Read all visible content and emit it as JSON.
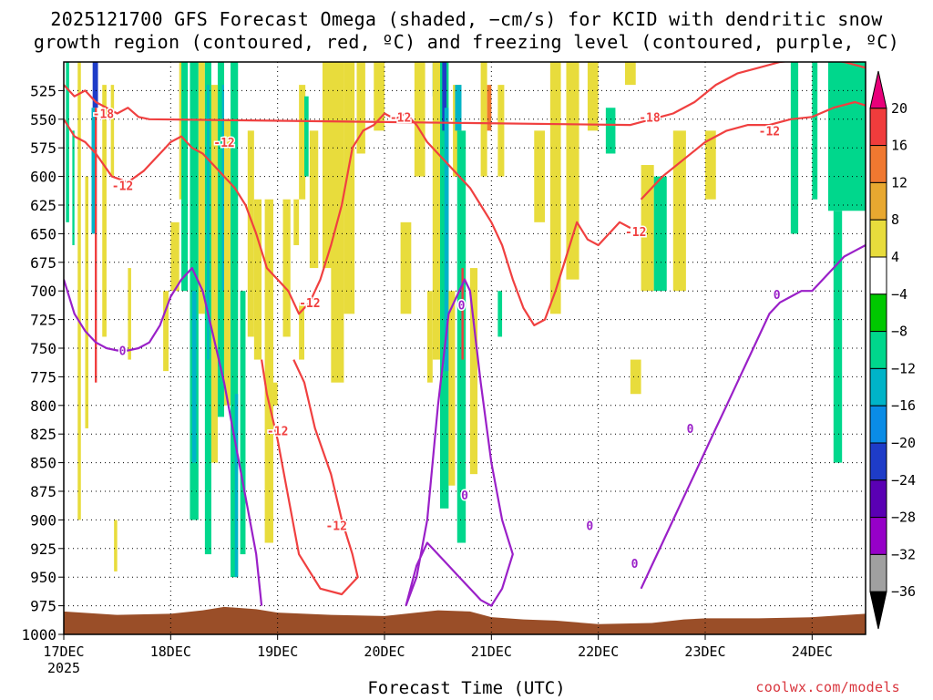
{
  "header": {
    "title_line1": "2025121700 GFS Forecast Omega (shaded, −cm/s) for KCID with dendritic snow",
    "title_line2": "growth region (contoured, red, ºC) and freezing level (contoured, purple, ºC)"
  },
  "footer": {
    "xlabel": "Forecast Time (UTC)",
    "watermark": "coolwx.com/models"
  },
  "chart_data": {
    "type": "heatmap",
    "xlabel": "Forecast Time (UTC)",
    "ylabel": "",
    "x_ticks": [
      {
        "label": "17DEC",
        "sublabel": "2025",
        "day": 0
      },
      {
        "label": "18DEC",
        "day": 1
      },
      {
        "label": "19DEC",
        "day": 2
      },
      {
        "label": "20DEC",
        "day": 3
      },
      {
        "label": "21DEC",
        "day": 4
      },
      {
        "label": "22DEC",
        "day": 5
      },
      {
        "label": "23DEC",
        "day": 6
      },
      {
        "label": "24DEC",
        "day": 7
      }
    ],
    "xlim": [
      0,
      7.5
    ],
    "y_ticks": [
      525,
      550,
      575,
      600,
      625,
      650,
      675,
      700,
      725,
      750,
      775,
      800,
      825,
      850,
      875,
      900,
      925,
      950,
      975,
      1000
    ],
    "ylim": [
      1000,
      500
    ],
    "grid": true,
    "colorbar": {
      "labels": [
        "20",
        "16",
        "12",
        "8",
        "4",
        "−4",
        "−8",
        "−12",
        "−16",
        "−20",
        "−24",
        "−28",
        "−32",
        "−36"
      ],
      "colors": [
        "#e8007a",
        "#f03c3c",
        "#f07830",
        "#e8a830",
        "#e8dc3c",
        "#ffffff",
        "#00c800",
        "#00d78c",
        "#00b4c8",
        "#0a8ce6",
        "#1e3cc8",
        "#5a00b4",
        "#9600c8",
        "#a0a0a0",
        "#000000"
      ]
    },
    "omega_regions": [
      {
        "x0": 0.02,
        "x1": 0.05,
        "p_top": 500,
        "p_bot": 640,
        "v": -8
      },
      {
        "x0": 0.08,
        "x1": 0.1,
        "p_top": 560,
        "p_bot": 660,
        "v": -8
      },
      {
        "x0": 0.13,
        "x1": 0.16,
        "p_top": 500,
        "p_bot": 900,
        "v": 4
      },
      {
        "x0": 0.2,
        "x1": 0.23,
        "p_top": 600,
        "p_bot": 820,
        "v": 4
      },
      {
        "x0": 0.27,
        "x1": 0.32,
        "p_top": 500,
        "p_bot": 540,
        "v": -20
      },
      {
        "x0": 0.26,
        "x1": 0.3,
        "p_top": 540,
        "p_bot": 650,
        "v": -12
      },
      {
        "x0": 0.29,
        "x1": 0.31,
        "p_top": 540,
        "p_bot": 780,
        "v": 16
      },
      {
        "x0": 0.36,
        "x1": 0.4,
        "p_top": 520,
        "p_bot": 740,
        "v": 4
      },
      {
        "x0": 0.44,
        "x1": 0.47,
        "p_top": 520,
        "p_bot": 600,
        "v": 4
      },
      {
        "x0": 0.47,
        "x1": 0.5,
        "p_top": 900,
        "p_bot": 945,
        "v": 4
      },
      {
        "x0": 0.6,
        "x1": 0.63,
        "p_top": 680,
        "p_bot": 760,
        "v": 4
      },
      {
        "x0": 0.93,
        "x1": 0.98,
        "p_top": 700,
        "p_bot": 770,
        "v": 4
      },
      {
        "x0": 1.0,
        "x1": 1.08,
        "p_top": 640,
        "p_bot": 700,
        "v": 4
      },
      {
        "x0": 1.08,
        "x1": 1.13,
        "p_top": 500,
        "p_bot": 620,
        "v": 4
      },
      {
        "x0": 1.1,
        "x1": 1.16,
        "p_top": 500,
        "p_bot": 700,
        "v": -8
      },
      {
        "x0": 1.18,
        "x1": 1.26,
        "p_top": 500,
        "p_bot": 900,
        "v": -8
      },
      {
        "x0": 1.2,
        "x1": 1.24,
        "p_top": 700,
        "p_bot": 850,
        "v": -12
      },
      {
        "x0": 1.26,
        "x1": 1.32,
        "p_top": 500,
        "p_bot": 720,
        "v": 4
      },
      {
        "x0": 1.32,
        "x1": 1.38,
        "p_top": 500,
        "p_bot": 930,
        "v": -8
      },
      {
        "x0": 1.34,
        "x1": 1.36,
        "p_top": 520,
        "p_bot": 760,
        "v": -12
      },
      {
        "x0": 1.38,
        "x1": 1.44,
        "p_top": 520,
        "p_bot": 850,
        "v": 4
      },
      {
        "x0": 1.44,
        "x1": 1.5,
        "p_top": 500,
        "p_bot": 810,
        "v": -8
      },
      {
        "x0": 1.48,
        "x1": 1.5,
        "p_top": 520,
        "p_bot": 700,
        "v": -12
      },
      {
        "x0": 1.5,
        "x1": 1.56,
        "p_top": 550,
        "p_bot": 800,
        "v": 4
      },
      {
        "x0": 1.56,
        "x1": 1.63,
        "p_top": 500,
        "p_bot": 950,
        "v": -8
      },
      {
        "x0": 1.6,
        "x1": 1.63,
        "p_top": 790,
        "p_bot": 950,
        "v": -12
      },
      {
        "x0": 1.65,
        "x1": 1.7,
        "p_top": 700,
        "p_bot": 930,
        "v": -8
      },
      {
        "x0": 1.72,
        "x1": 1.78,
        "p_top": 560,
        "p_bot": 740,
        "v": 4
      },
      {
        "x0": 1.78,
        "x1": 1.85,
        "p_top": 620,
        "p_bot": 760,
        "v": 4
      },
      {
        "x0": 1.88,
        "x1": 1.96,
        "p_top": 620,
        "p_bot": 920,
        "v": 4
      },
      {
        "x0": 1.96,
        "x1": 2.0,
        "p_top": 780,
        "p_bot": 800,
        "v": 4
      },
      {
        "x0": 2.05,
        "x1": 2.12,
        "p_top": 620,
        "p_bot": 740,
        "v": 4
      },
      {
        "x0": 2.15,
        "x1": 2.2,
        "p_top": 620,
        "p_bot": 660,
        "v": 4
      },
      {
        "x0": 2.2,
        "x1": 2.26,
        "p_top": 520,
        "p_bot": 620,
        "v": 4
      },
      {
        "x0": 2.2,
        "x1": 2.25,
        "p_top": 710,
        "p_bot": 760,
        "v": 4
      },
      {
        "x0": 2.25,
        "x1": 2.29,
        "p_top": 530,
        "p_bot": 600,
        "v": -8
      },
      {
        "x0": 2.3,
        "x1": 2.38,
        "p_top": 560,
        "p_bot": 680,
        "v": 4
      },
      {
        "x0": 2.42,
        "x1": 2.52,
        "p_top": 500,
        "p_bot": 680,
        "v": 4
      },
      {
        "x0": 2.5,
        "x1": 2.62,
        "p_top": 500,
        "p_bot": 780,
        "v": 4
      },
      {
        "x0": 2.62,
        "x1": 2.72,
        "p_top": 500,
        "p_bot": 720,
        "v": 4
      },
      {
        "x0": 2.74,
        "x1": 2.82,
        "p_top": 500,
        "p_bot": 580,
        "v": 4
      },
      {
        "x0": 2.9,
        "x1": 3.0,
        "p_top": 500,
        "p_bot": 560,
        "v": 4
      },
      {
        "x0": 3.15,
        "x1": 3.25,
        "p_top": 640,
        "p_bot": 720,
        "v": 4
      },
      {
        "x0": 3.28,
        "x1": 3.38,
        "p_top": 500,
        "p_bot": 600,
        "v": 4
      },
      {
        "x0": 3.4,
        "x1": 3.45,
        "p_top": 700,
        "p_bot": 780,
        "v": 4
      },
      {
        "x0": 3.45,
        "x1": 3.52,
        "p_top": 500,
        "p_bot": 530,
        "v": -12
      },
      {
        "x0": 3.45,
        "x1": 3.52,
        "p_top": 500,
        "p_bot": 760,
        "v": 4
      },
      {
        "x0": 3.52,
        "x1": 3.6,
        "p_top": 500,
        "p_bot": 890,
        "v": -8
      },
      {
        "x0": 3.54,
        "x1": 3.58,
        "p_top": 500,
        "p_bot": 560,
        "v": -20
      },
      {
        "x0": 3.56,
        "x1": 3.6,
        "p_top": 540,
        "p_bot": 770,
        "v": -12
      },
      {
        "x0": 3.6,
        "x1": 3.66,
        "p_top": 700,
        "p_bot": 870,
        "v": 4
      },
      {
        "x0": 3.64,
        "x1": 3.72,
        "p_top": 520,
        "p_bot": 600,
        "v": 4
      },
      {
        "x0": 3.68,
        "x1": 3.76,
        "p_top": 560,
        "p_bot": 920,
        "v": -8
      },
      {
        "x0": 3.66,
        "x1": 3.72,
        "p_top": 520,
        "p_bot": 560,
        "v": -12
      },
      {
        "x0": 3.72,
        "x1": 3.74,
        "p_top": 680,
        "p_bot": 760,
        "v": 16
      },
      {
        "x0": 3.8,
        "x1": 3.87,
        "p_top": 680,
        "p_bot": 860,
        "v": 4
      },
      {
        "x0": 3.9,
        "x1": 3.96,
        "p_top": 500,
        "p_bot": 600,
        "v": 4
      },
      {
        "x0": 3.96,
        "x1": 4.0,
        "p_top": 520,
        "p_bot": 560,
        "v": 12
      },
      {
        "x0": 4.06,
        "x1": 4.12,
        "p_top": 520,
        "p_bot": 600,
        "v": 4
      },
      {
        "x0": 4.06,
        "x1": 4.1,
        "p_top": 700,
        "p_bot": 740,
        "v": -8
      },
      {
        "x0": 4.4,
        "x1": 4.5,
        "p_top": 560,
        "p_bot": 640,
        "v": 4
      },
      {
        "x0": 4.55,
        "x1": 4.65,
        "p_top": 500,
        "p_bot": 720,
        "v": 4
      },
      {
        "x0": 4.7,
        "x1": 4.82,
        "p_top": 500,
        "p_bot": 690,
        "v": 4
      },
      {
        "x0": 4.9,
        "x1": 5.0,
        "p_top": 500,
        "p_bot": 560,
        "v": 4
      },
      {
        "x0": 5.07,
        "x1": 5.16,
        "p_top": 540,
        "p_bot": 580,
        "v": -8
      },
      {
        "x0": 5.25,
        "x1": 5.35,
        "p_top": 500,
        "p_bot": 520,
        "v": 4
      },
      {
        "x0": 5.3,
        "x1": 5.4,
        "p_top": 760,
        "p_bot": 790,
        "v": 4
      },
      {
        "x0": 5.4,
        "x1": 5.52,
        "p_top": 590,
        "p_bot": 700,
        "v": 4
      },
      {
        "x0": 5.52,
        "x1": 5.64,
        "p_top": 600,
        "p_bot": 700,
        "v": -8
      },
      {
        "x0": 5.7,
        "x1": 5.82,
        "p_top": 560,
        "p_bot": 700,
        "v": 4
      },
      {
        "x0": 6.0,
        "x1": 6.1,
        "p_top": 560,
        "p_bot": 620,
        "v": 4
      },
      {
        "x0": 6.8,
        "x1": 6.87,
        "p_top": 500,
        "p_bot": 650,
        "v": -8
      },
      {
        "x0": 7.0,
        "x1": 7.05,
        "p_top": 500,
        "p_bot": 620,
        "v": -8
      },
      {
        "x0": 7.15,
        "x1": 7.5,
        "p_top": 500,
        "p_bot": 630,
        "v": -8
      },
      {
        "x0": 7.2,
        "x1": 7.28,
        "p_top": 630,
        "p_bot": 850,
        "v": -8
      }
    ],
    "terrain": {
      "x": [
        0,
        0.5,
        1.0,
        1.3,
        1.5,
        1.8,
        2.0,
        2.5,
        3.0,
        3.3,
        3.5,
        3.8,
        4.0,
        4.3,
        4.6,
        5.0,
        5.5,
        5.8,
        6.0,
        6.5,
        7.0,
        7.5
      ],
      "p": [
        980,
        983,
        982,
        979,
        976,
        978,
        981,
        983,
        984,
        981,
        979,
        980,
        985,
        987,
        988,
        991,
        990,
        987,
        986,
        986,
        985,
        982
      ]
    },
    "series": [
      {
        "name": "-12",
        "color": "#f04040",
        "x": [
          0.0,
          0.1,
          0.2,
          0.3,
          0.45,
          0.6,
          0.75,
          0.85,
          0.95,
          1.0,
          1.1,
          1.2,
          1.3,
          1.4,
          1.5,
          1.6,
          1.7,
          1.8,
          1.9,
          2.0,
          2.1,
          2.2,
          2.3,
          2.4,
          2.5,
          2.6,
          2.7,
          2.8,
          2.9,
          3.0,
          3.1,
          3.2,
          3.3,
          3.4,
          3.5,
          3.6,
          3.7,
          3.8,
          3.9,
          4.0,
          4.1,
          4.2,
          4.3,
          4.4,
          4.5,
          4.6,
          4.7,
          4.8,
          4.9,
          5.0,
          5.1,
          5.2,
          5.3
        ],
        "p": [
          550,
          565,
          570,
          580,
          600,
          605,
          595,
          585,
          575,
          570,
          565,
          575,
          580,
          590,
          600,
          610,
          625,
          650,
          680,
          690,
          700,
          720,
          710,
          690,
          660,
          625,
          575,
          560,
          555,
          545,
          550,
          545,
          555,
          570,
          580,
          590,
          600,
          610,
          625,
          640,
          660,
          690,
          715,
          730,
          725,
          700,
          670,
          640,
          655,
          660,
          650,
          640,
          645
        ]
      },
      {
        "name": "-12 lower",
        "color": "#f04040",
        "x": [
          2.15,
          2.25,
          2.35,
          2.5,
          2.6,
          2.7,
          2.75,
          2.6,
          2.4,
          2.2,
          2.1,
          2.0,
          1.9,
          1.85
        ],
        "p": [
          760,
          780,
          820,
          860,
          900,
          930,
          950,
          965,
          960,
          930,
          880,
          830,
          790,
          760
        ]
      },
      {
        "name": "-18",
        "color": "#f04040",
        "x": [
          0.0,
          0.1,
          0.2,
          0.3,
          0.4,
          0.5,
          0.6,
          0.7,
          0.8,
          5.3,
          5.5,
          5.7,
          5.9,
          6.1,
          6.3,
          6.5,
          6.7,
          6.9,
          7.1,
          7.3,
          7.5
        ],
        "p": [
          520,
          530,
          525,
          535,
          540,
          545,
          540,
          548,
          550,
          555,
          550,
          545,
          535,
          520,
          510,
          505,
          500,
          498,
          497,
          500,
          505
        ]
      },
      {
        "name": "-12 upper right",
        "color": "#f04040",
        "x": [
          5.4,
          5.6,
          5.8,
          6.0,
          6.2,
          6.4,
          6.6,
          6.8,
          7.0,
          7.2,
          7.4,
          7.5
        ],
        "p": [
          620,
          600,
          585,
          570,
          560,
          555,
          555,
          550,
          548,
          540,
          535,
          538
        ]
      },
      {
        "name": "0",
        "color": "#9a20c8",
        "x": [
          0.0,
          0.1,
          0.2,
          0.3,
          0.4,
          0.5,
          0.6,
          0.7,
          0.8,
          0.9,
          1.0,
          1.1,
          1.2,
          1.3,
          1.4,
          1.5,
          1.6,
          1.7,
          1.8,
          1.85
        ],
        "p": [
          690,
          720,
          735,
          745,
          750,
          752,
          752,
          750,
          745,
          730,
          705,
          690,
          680,
          700,
          740,
          780,
          830,
          880,
          930,
          975
        ]
      },
      {
        "name": "0 right",
        "color": "#9a20c8",
        "x": [
          3.2,
          3.3,
          3.4,
          3.5,
          3.6,
          3.7,
          3.75,
          3.8,
          3.85,
          3.9,
          4.0,
          4.1,
          4.2,
          4.1,
          4.0,
          3.9,
          3.8,
          3.7,
          3.6,
          3.5,
          3.4,
          3.3,
          3.2
        ],
        "p": [
          975,
          950,
          900,
          800,
          720,
          700,
          690,
          700,
          740,
          780,
          850,
          900,
          930,
          960,
          975,
          970,
          960,
          950,
          940,
          930,
          920,
          940,
          975
        ]
      },
      {
        "name": "0 staircase",
        "color": "#9a20c8",
        "x": [
          5.4,
          5.5,
          5.6,
          5.7,
          5.8,
          5.9,
          6.0,
          6.1,
          6.2,
          6.3,
          6.4,
          6.5,
          6.6,
          6.7,
          6.8,
          6.9,
          7.0,
          7.1,
          7.2,
          7.3,
          7.4,
          7.5
        ],
        "p": [
          960,
          940,
          920,
          900,
          880,
          860,
          840,
          820,
          800,
          780,
          760,
          740,
          720,
          710,
          705,
          700,
          700,
          690,
          680,
          670,
          665,
          660
        ]
      }
    ],
    "contour_labels": [
      {
        "text": "-18",
        "x": 0.37,
        "p": 545,
        "color": "#f04040"
      },
      {
        "text": "-12",
        "x": 0.55,
        "p": 608,
        "color": "#f04040"
      },
      {
        "text": "-12",
        "x": 1.5,
        "p": 570,
        "color": "#f04040"
      },
      {
        "text": "-12",
        "x": 2.3,
        "p": 710,
        "color": "#f04040"
      },
      {
        "text": "-12",
        "x": 2.0,
        "p": 822,
        "color": "#f04040"
      },
      {
        "text": "-12",
        "x": 2.55,
        "p": 905,
        "color": "#f04040"
      },
      {
        "text": "-12",
        "x": 3.15,
        "p": 548,
        "color": "#f04040"
      },
      {
        "text": "-18",
        "x": 5.48,
        "p": 548,
        "color": "#f04040"
      },
      {
        "text": "-12",
        "x": 5.35,
        "p": 648,
        "color": "#f04040"
      },
      {
        "text": "-12",
        "x": 6.6,
        "p": 560,
        "color": "#f04040"
      },
      {
        "text": "0",
        "x": 0.55,
        "p": 752,
        "color": "#9a20c8"
      },
      {
        "text": "0",
        "x": 3.72,
        "p": 712,
        "color": "#9a20c8"
      },
      {
        "text": "0",
        "x": 3.75,
        "p": 878,
        "color": "#9a20c8"
      },
      {
        "text": "0",
        "x": 4.92,
        "p": 905,
        "color": "#9a20c8"
      },
      {
        "text": "0",
        "x": 5.34,
        "p": 938,
        "color": "#9a20c8"
      },
      {
        "text": "0",
        "x": 5.86,
        "p": 820,
        "color": "#9a20c8"
      },
      {
        "text": "0",
        "x": 6.67,
        "p": 703,
        "color": "#9a20c8"
      }
    ]
  }
}
